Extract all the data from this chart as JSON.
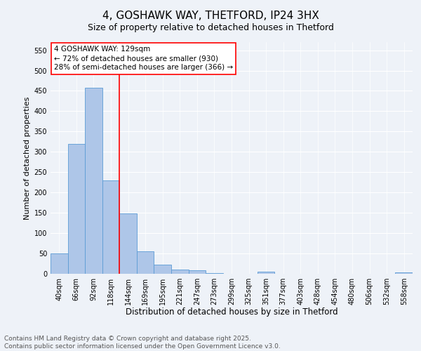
{
  "title": "4, GOSHAWK WAY, THETFORD, IP24 3HX",
  "subtitle": "Size of property relative to detached houses in Thetford",
  "xlabel": "Distribution of detached houses by size in Thetford",
  "ylabel": "Number of detached properties",
  "categories": [
    "40sqm",
    "66sqm",
    "92sqm",
    "118sqm",
    "144sqm",
    "169sqm",
    "195sqm",
    "221sqm",
    "247sqm",
    "273sqm",
    "299sqm",
    "325sqm",
    "351sqm",
    "377sqm",
    "403sqm",
    "428sqm",
    "454sqm",
    "480sqm",
    "506sqm",
    "532sqm",
    "558sqm"
  ],
  "values": [
    50,
    320,
    457,
    230,
    148,
    55,
    22,
    10,
    8,
    2,
    0,
    0,
    6,
    0,
    0,
    0,
    0,
    0,
    0,
    0,
    3
  ],
  "bar_color": "#aec6e8",
  "bar_edge_color": "#5b9bd5",
  "vline_x_index": 3,
  "vline_color": "red",
  "annotation_line1": "4 GOSHAWK WAY: 129sqm",
  "annotation_line2": "← 72% of detached houses are smaller (930)",
  "annotation_line3": "28% of semi-detached houses are larger (366) →",
  "annotation_box_color": "white",
  "annotation_box_edge": "red",
  "ylim": [
    0,
    570
  ],
  "yticks": [
    0,
    50,
    100,
    150,
    200,
    250,
    300,
    350,
    400,
    450,
    500,
    550
  ],
  "background_color": "#eef2f8",
  "grid_color": "white",
  "footer": "Contains HM Land Registry data © Crown copyright and database right 2025.\nContains public sector information licensed under the Open Government Licence v3.0.",
  "title_fontsize": 11,
  "xlabel_fontsize": 8.5,
  "ylabel_fontsize": 8,
  "tick_fontsize": 7,
  "footer_fontsize": 6.5,
  "annotation_fontsize": 7.5
}
